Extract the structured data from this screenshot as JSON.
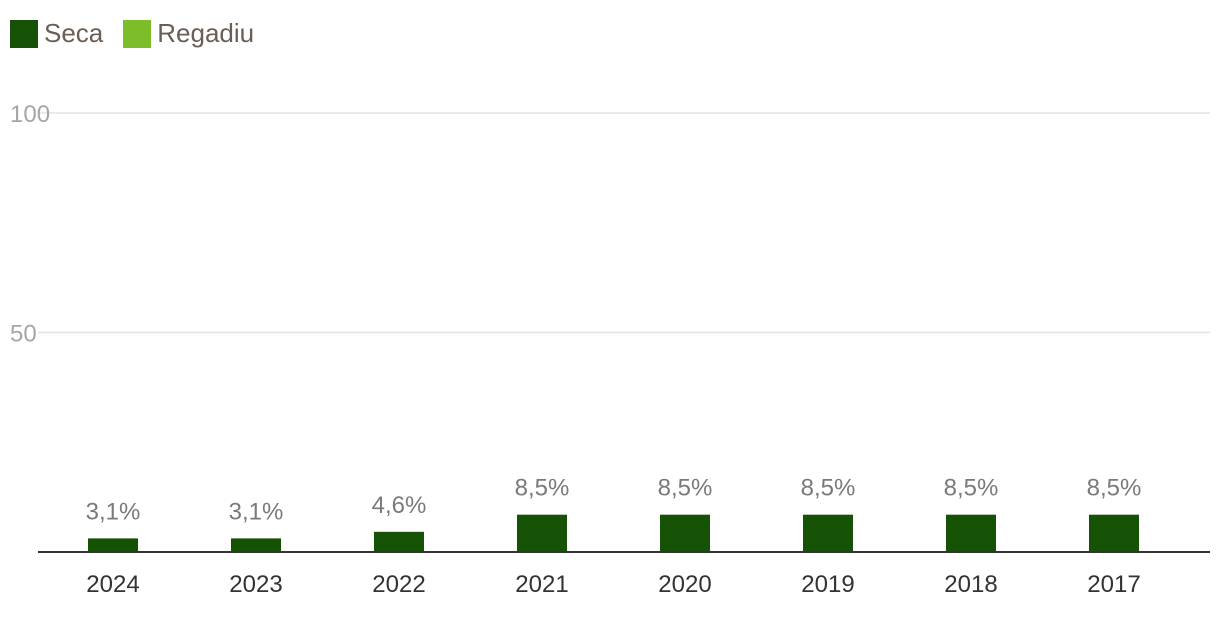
{
  "legend": {
    "items": [
      {
        "label": "Seca",
        "color": "#165206"
      },
      {
        "label": "Regadiu",
        "color": "#7ebd2a"
      }
    ]
  },
  "chart_data": {
    "type": "bar",
    "categories": [
      "2024",
      "2023",
      "2022",
      "2021",
      "2020",
      "2019",
      "2018",
      "2017"
    ],
    "series": [
      {
        "name": "Seca",
        "values": [
          3.1,
          3.1,
          4.6,
          8.5,
          8.5,
          8.5,
          8.5,
          8.5
        ],
        "color": "#165206"
      },
      {
        "name": "Regadiu",
        "values": [
          null,
          null,
          null,
          null,
          null,
          null,
          null,
          null
        ],
        "color": "#7ebd2a"
      }
    ],
    "data_labels": [
      "3,1%",
      "3,1%",
      "4,6%",
      "8,5%",
      "8,5%",
      "8,5%",
      "8,5%",
      "8,5%"
    ],
    "yticks": [
      "50",
      "100"
    ],
    "ylim": [
      0,
      100
    ],
    "grid": true,
    "legend_position": "top-left"
  }
}
